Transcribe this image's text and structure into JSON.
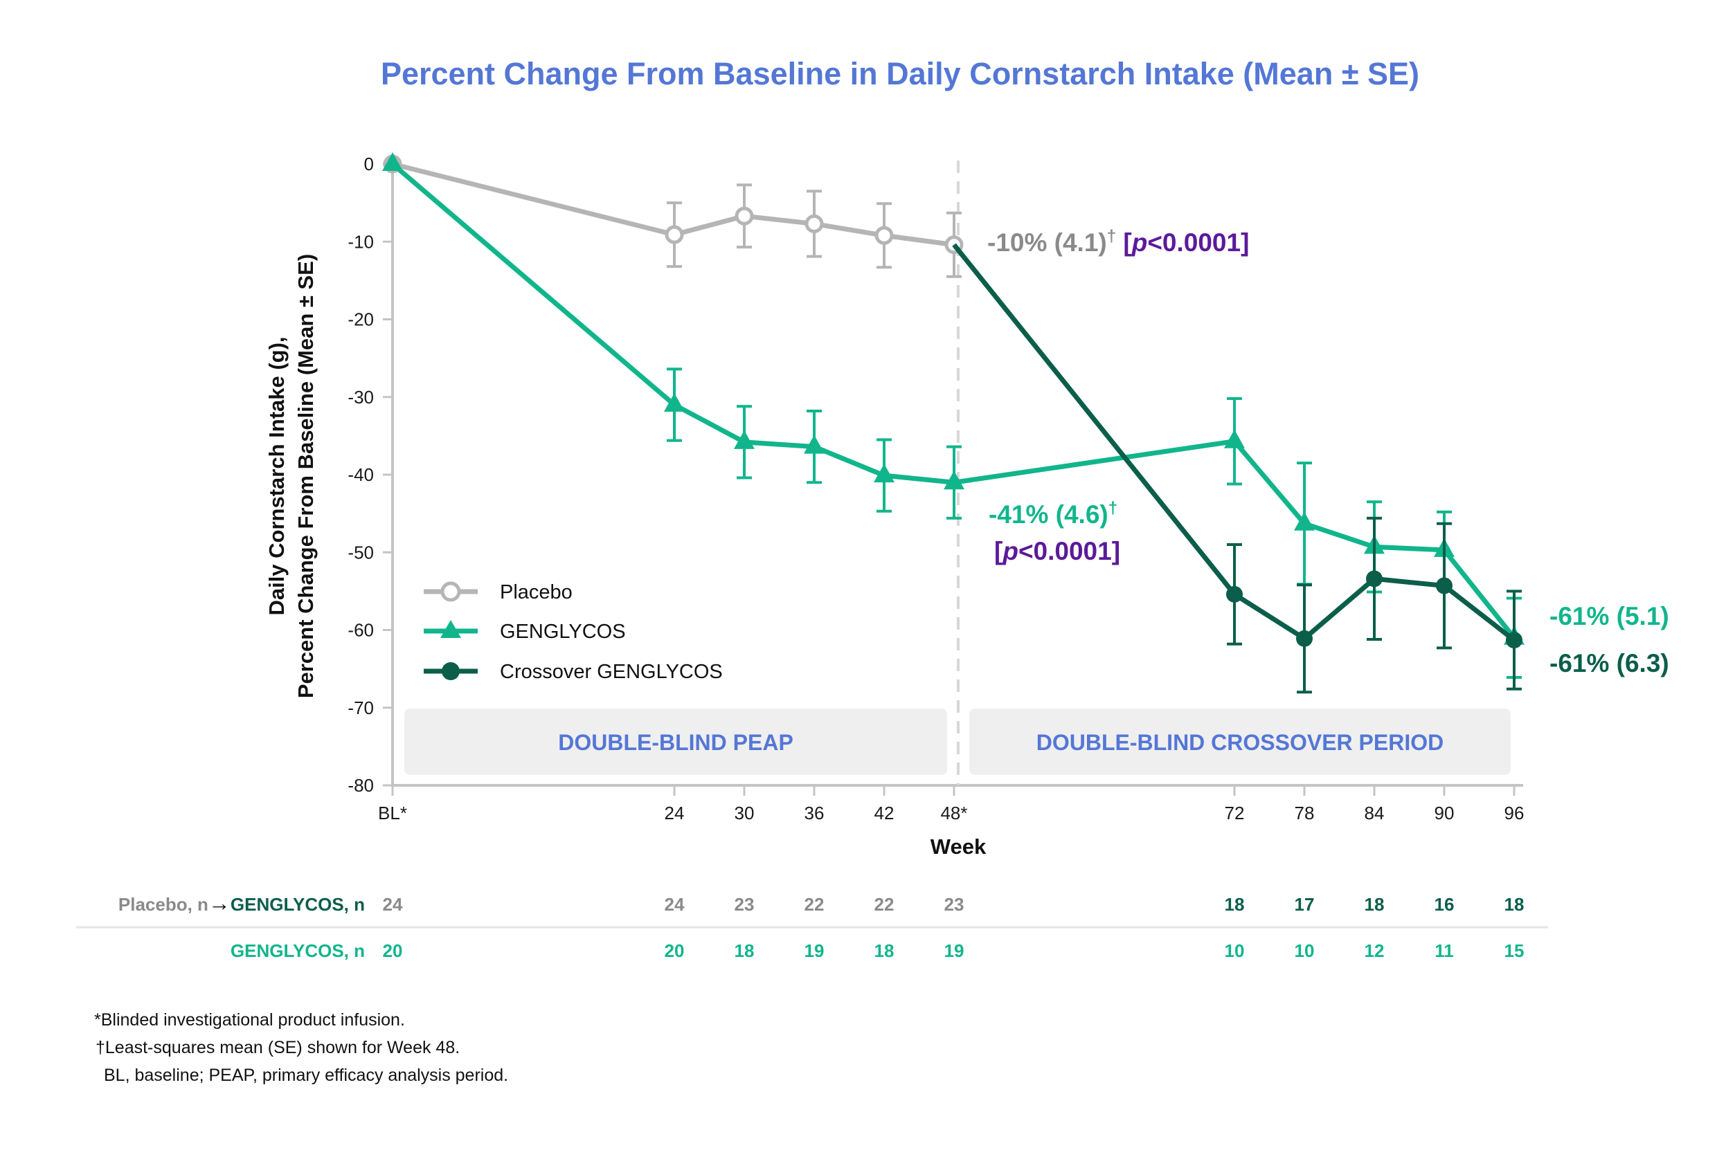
{
  "chart_data": {
    "type": "line",
    "title": "Percent Change From Baseline in Daily Cornstarch Intake (Mean ± SE)",
    "ylabel_line1": "Daily Cornstarch Intake (g),",
    "ylabel_line2": "Percent Change From Baseline (Mean ± SE)",
    "xlabel": "Week",
    "ylim": [
      -80,
      0
    ],
    "yticks": [
      0,
      -10,
      -20,
      -30,
      -40,
      -50,
      -60,
      -70,
      -80
    ],
    "x_tick_labels": [
      {
        "week": 0,
        "label": "BL*"
      },
      {
        "week": 24,
        "label": "24"
      },
      {
        "week": 30,
        "label": "30"
      },
      {
        "week": 36,
        "label": "36"
      },
      {
        "week": 42,
        "label": "42"
      },
      {
        "week": 48,
        "label": "48*"
      },
      {
        "week": 72,
        "label": "72"
      },
      {
        "week": 78,
        "label": "78"
      },
      {
        "week": 84,
        "label": "84"
      },
      {
        "week": 90,
        "label": "90"
      },
      {
        "week": 96,
        "label": "96"
      }
    ],
    "series": [
      {
        "name": "Placebo",
        "color": "#b5b5b5",
        "marker": "open-circle",
        "points": [
          {
            "x": 0,
            "y": 0,
            "se": 0
          },
          {
            "x": 24,
            "y": -9.1,
            "se": 4.1
          },
          {
            "x": 30,
            "y": -6.7,
            "se": 4.0
          },
          {
            "x": 36,
            "y": -7.7,
            "se": 4.2
          },
          {
            "x": 42,
            "y": -9.2,
            "se": 4.1
          },
          {
            "x": 48,
            "y": -10.4,
            "se": 4.1
          }
        ]
      },
      {
        "name": "GENGLYCOS",
        "color": "#11b58c",
        "marker": "triangle",
        "points": [
          {
            "x": 0,
            "y": 0,
            "se": 0
          },
          {
            "x": 24,
            "y": -31.0,
            "se": 4.6
          },
          {
            "x": 30,
            "y": -35.8,
            "se": 4.6
          },
          {
            "x": 36,
            "y": -36.4,
            "se": 4.6
          },
          {
            "x": 42,
            "y": -40.1,
            "se": 4.6
          },
          {
            "x": 48,
            "y": -41.0,
            "se": 4.6
          },
          {
            "x": 72,
            "y": -35.7,
            "se": 5.5
          },
          {
            "x": 78,
            "y": -46.3,
            "se": 7.8
          },
          {
            "x": 84,
            "y": -49.3,
            "se": 5.8
          },
          {
            "x": 90,
            "y": -49.7,
            "se": 4.9
          },
          {
            "x": 96,
            "y": -61.0,
            "se": 5.1
          }
        ]
      },
      {
        "name": "Crossover GENGLYCOS",
        "color": "#0b5e4a",
        "marker": "filled-circle",
        "points": [
          {
            "x": 48,
            "y": -10.4,
            "se": 0
          },
          {
            "x": 72,
            "y": -55.4,
            "se": 6.4
          },
          {
            "x": 78,
            "y": -61.1,
            "se": 6.9
          },
          {
            "x": 84,
            "y": -53.4,
            "se": 7.8
          },
          {
            "x": 90,
            "y": -54.3,
            "se": 8.0
          },
          {
            "x": 96,
            "y": -61.3,
            "se": 6.3
          }
        ]
      }
    ],
    "legend": {
      "position": "lower-left",
      "entries": [
        "Placebo",
        "GENGLYCOS",
        "Crossover GENGLYCOS"
      ]
    },
    "period_labels": [
      "DOUBLE-BLIND PEAP",
      "DOUBLE-BLIND CROSSOVER PERIOD"
    ],
    "annotations": {
      "placebo_w48": {
        "value": "-10% (4.1)",
        "dagger": "†",
        "p_open": "[",
        "p_italic": "p",
        "p_rest": "<0.0001]"
      },
      "genglycos_w48": {
        "value": "-41% (4.6)",
        "dagger": "†",
        "p_open": "[",
        "p_italic": "p",
        "p_rest": "<0.0001]"
      },
      "genglycos_w96": "-61% (5.1)",
      "crossover_w96": "-61% (6.3)"
    },
    "n_table": {
      "row1_label_prefix": "Placebo, n",
      "row1_label_arrow": "→",
      "row1_label_suffix": "GENGLYCOS, n",
      "row1_values": [
        {
          "week": 0,
          "n": "24"
        },
        {
          "week": 24,
          "n": "24"
        },
        {
          "week": 30,
          "n": "23"
        },
        {
          "week": 36,
          "n": "22"
        },
        {
          "week": 42,
          "n": "22"
        },
        {
          "week": 48,
          "n": "23"
        },
        {
          "week": 72,
          "n": "18"
        },
        {
          "week": 78,
          "n": "17"
        },
        {
          "week": 84,
          "n": "18"
        },
        {
          "week": 90,
          "n": "16"
        },
        {
          "week": 96,
          "n": "18"
        }
      ],
      "row2_label": "GENGLYCOS, n",
      "row2_values": [
        {
          "week": 0,
          "n": "20"
        },
        {
          "week": 24,
          "n": "20"
        },
        {
          "week": 30,
          "n": "18"
        },
        {
          "week": 36,
          "n": "19"
        },
        {
          "week": 42,
          "n": "18"
        },
        {
          "week": 48,
          "n": "19"
        },
        {
          "week": 72,
          "n": "10"
        },
        {
          "week": 78,
          "n": "10"
        },
        {
          "week": 84,
          "n": "12"
        },
        {
          "week": 90,
          "n": "11"
        },
        {
          "week": 96,
          "n": "15"
        }
      ]
    }
  },
  "footnotes": [
    "*Blinded investigational product infusion.",
    "†Least-squares mean (SE) shown for Week 48.",
    "BL, baseline; PEAP, primary efficacy analysis period."
  ],
  "colors": {
    "title": "#5477d6",
    "placebo": "#b5b5b5",
    "placebo_text": "#8a8a8a",
    "genglycos": "#11b58c",
    "crossover": "#0b5e4a",
    "pvalue": "#5b1a9a",
    "period_text": "#5477d6",
    "period_bg": "#efefef"
  }
}
